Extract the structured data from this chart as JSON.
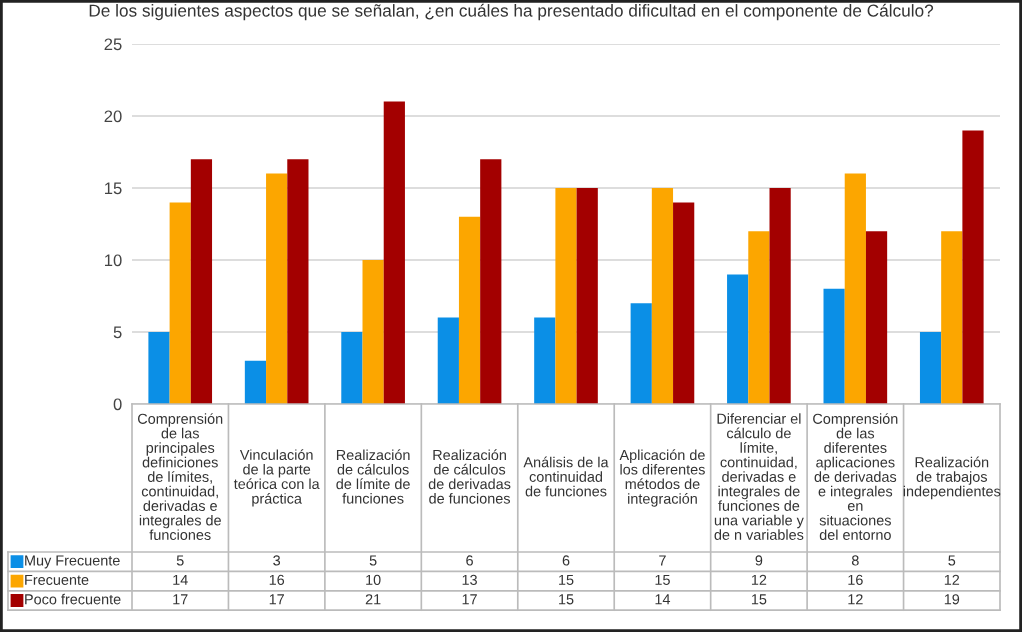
{
  "chart_data": {
    "type": "bar",
    "title": "De los siguientes aspectos que se señalan, ¿en cuáles ha presentado dificultad en el componente de Cálculo?",
    "categories": [
      "Comprensión de las principales definiciones de límites, continuidad, derivadas e integrales de funciones",
      "Vinculación de la parte teórica con la práctica",
      "Realización de cálculos de límite de funciones",
      "Realización de cálculos de derivadas de funciones",
      "Análisis de la continuidad de funciones",
      "Aplicación de los diferentes métodos de integración",
      "Diferenciar el cálculo de límite, continuidad, derivadas e integrales de funciones de una variable y de n variables",
      "Comprensión de las diferentes aplicaciones de derivadas e integrales en situaciones del entorno",
      "Realización de trabajos independientes"
    ],
    "series": [
      {
        "name": "Muy Frecuente",
        "color": "#0b8fe6",
        "values": [
          5,
          3,
          5,
          6,
          6,
          7,
          9,
          8,
          5
        ]
      },
      {
        "name": "Frecuente",
        "color": "#fca600",
        "values": [
          14,
          16,
          10,
          13,
          15,
          15,
          12,
          16,
          12
        ]
      },
      {
        "name": "Poco frecuente",
        "color": "#a30000",
        "values": [
          17,
          17,
          21,
          17,
          15,
          14,
          15,
          12,
          19
        ]
      }
    ],
    "ylim": [
      0,
      25
    ],
    "yticks": [
      0,
      5,
      10,
      15,
      20,
      25
    ],
    "grid": "y",
    "data_labels": true,
    "legend": "bottom left"
  }
}
